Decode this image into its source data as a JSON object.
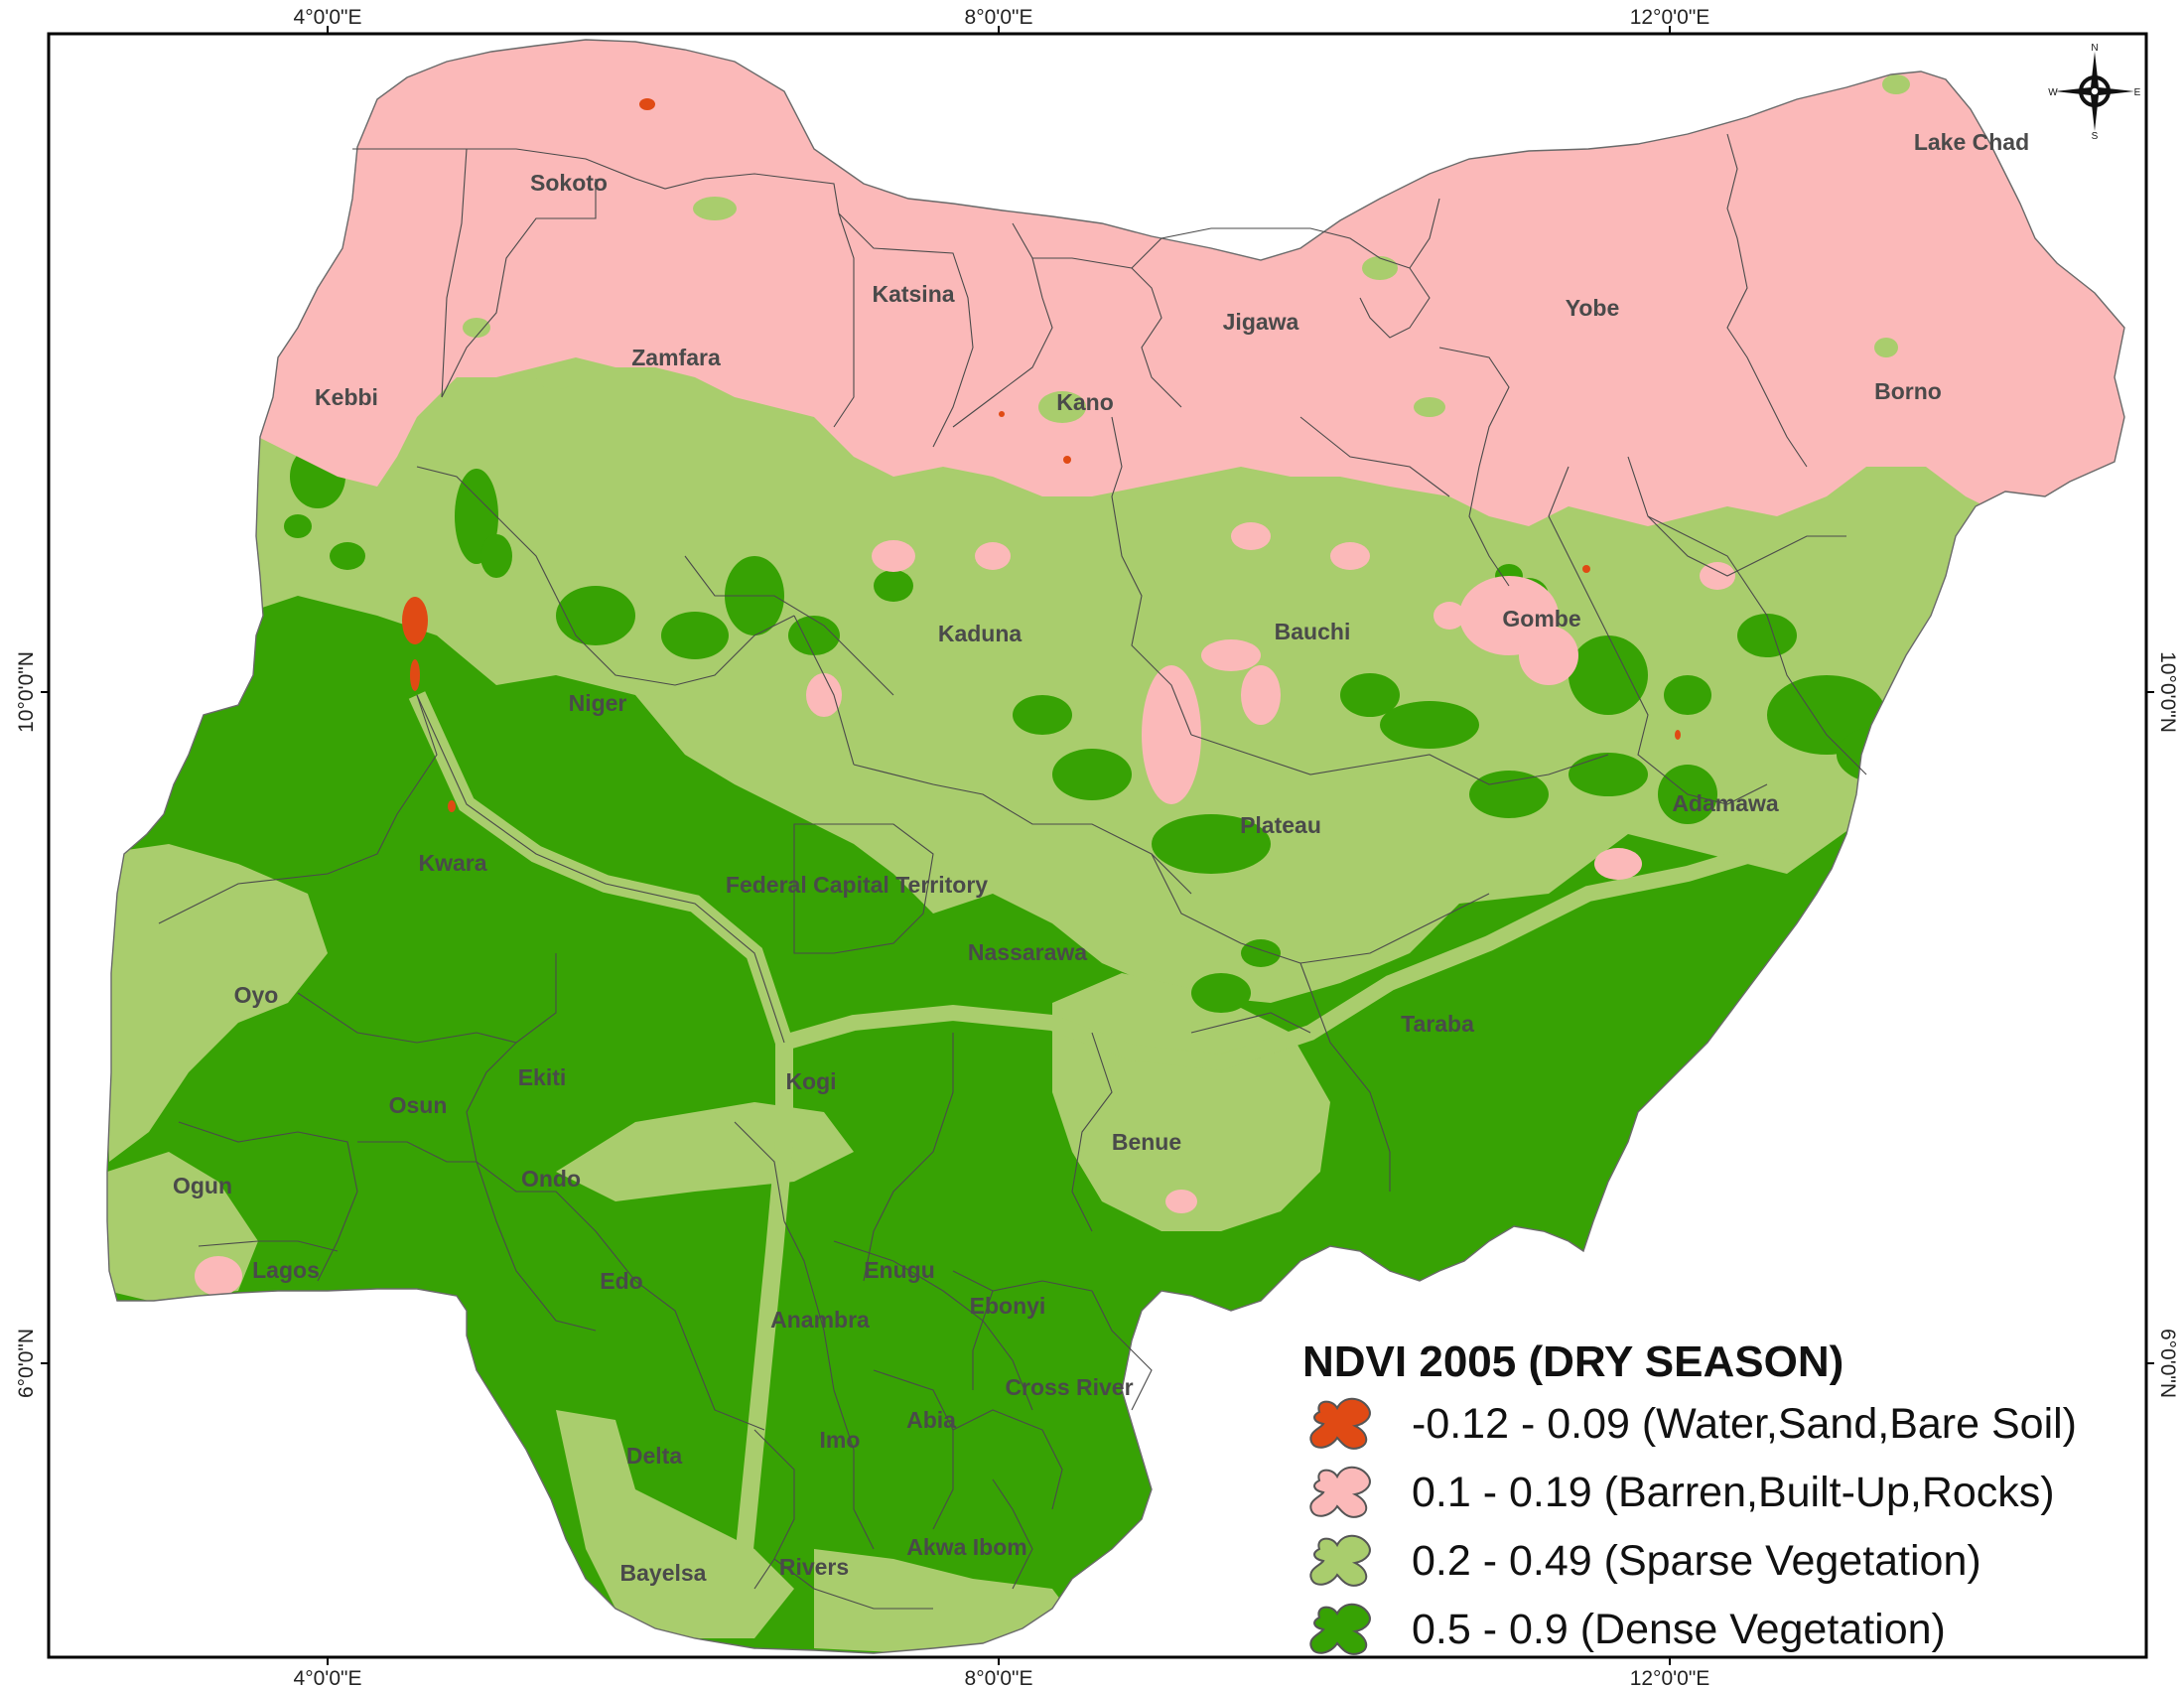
{
  "map": {
    "legend": {
      "title": "NDVI 2005 (DRY SEASON)",
      "classes": [
        {
          "label": "-0.12 - 0.09 (Water,Sand,Bare Soil)",
          "color": "#e04a14"
        },
        {
          "label": "0.1 - 0.19 (Barren,Built-Up,Rocks)",
          "color": "#fbb9b9"
        },
        {
          "label": "0.2 - 0.49 (Sparse Vegetation)",
          "color": "#a9cd6d"
        },
        {
          "label": "0.5 - 0.9 (Dense Vegetation)",
          "color": "#37a204"
        }
      ]
    },
    "graticule": {
      "top": [
        "4°0'0\"E",
        "8°0'0\"E",
        "12°0'0\"E"
      ],
      "bottom": [
        "4°0'0\"E",
        "8°0'0\"E",
        "12°0'0\"E"
      ],
      "left": [
        "10°0'0\"N",
        "6°0'0\"N"
      ],
      "right": [
        "10°0'0\"N",
        "6°0'0\"N"
      ]
    },
    "compass": {
      "n": "N",
      "s": "S",
      "e": "E",
      "w": "W"
    },
    "states": [
      "Sokoto",
      "Katsina",
      "Zamfara",
      "Kebbi",
      "Kano",
      "Jigawa",
      "Yobe",
      "Borno",
      "Lake Chad",
      "Kaduna",
      "Bauchi",
      "Gombe",
      "Niger",
      "Plateau",
      "Adamawa",
      "Kwara",
      "Federal Capital Territory",
      "Nassarawa",
      "Oyo",
      "Taraba",
      "Ekiti",
      "Kogi",
      "Osun",
      "Benue",
      "Ogun",
      "Ondo",
      "Lagos",
      "Edo",
      "Enugu",
      "Ebonyi",
      "Anambra",
      "Cross River",
      "Imo",
      "Abia",
      "Delta",
      "Akwa Ibom",
      "Rivers",
      "Bayelsa"
    ]
  }
}
